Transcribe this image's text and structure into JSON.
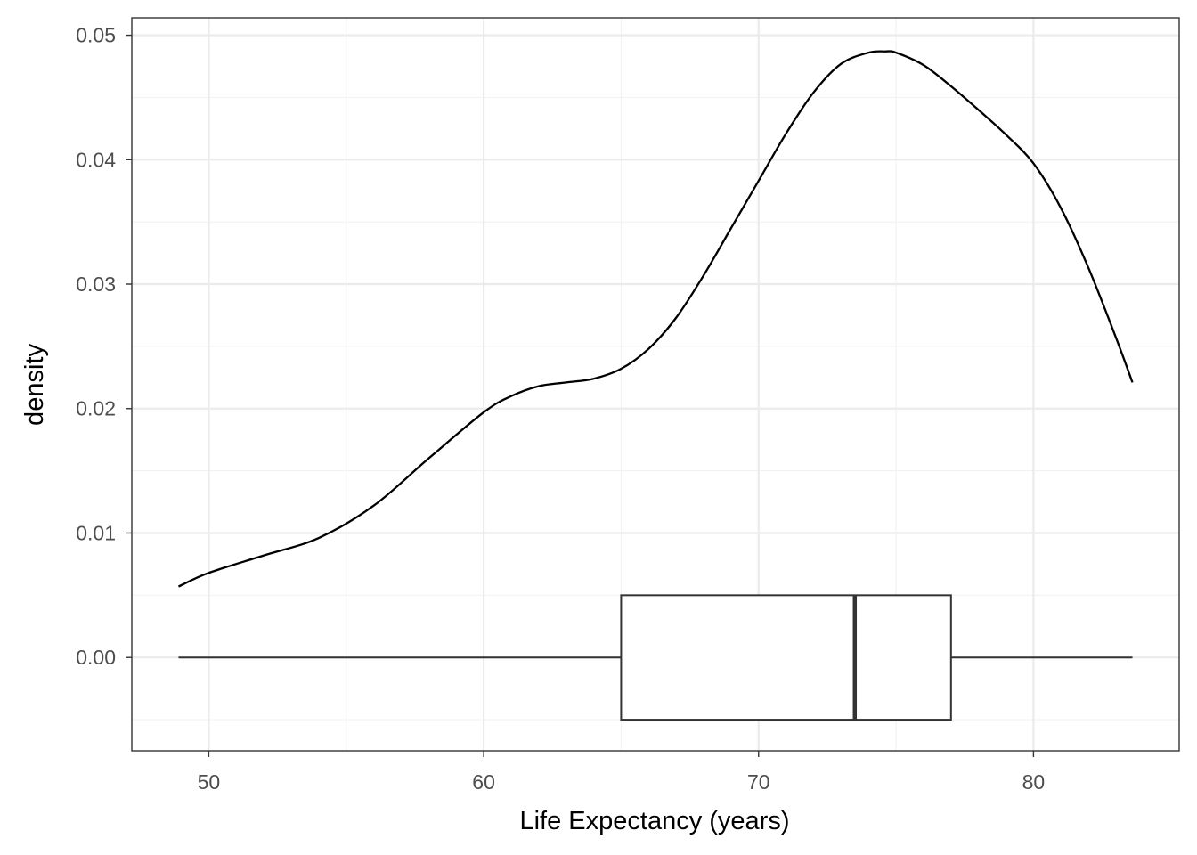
{
  "chart_data": {
    "type": "density",
    "xlabel": "Life Expectancy (years)",
    "ylabel": "density",
    "xlim": [
      47.2,
      85.3
    ],
    "ylim": [
      -0.0075,
      0.0514
    ],
    "x_ticks": [
      50,
      60,
      70,
      80
    ],
    "x_tick_labels": [
      "50",
      "60",
      "70",
      "80"
    ],
    "y_ticks": [
      0.0,
      0.01,
      0.02,
      0.03,
      0.04,
      0.05
    ],
    "y_tick_labels": [
      "0.00",
      "0.01",
      "0.02",
      "0.03",
      "0.04",
      "0.05"
    ],
    "x_minor_ticks": [
      55,
      65,
      75
    ],
    "y_minor_ticks": [
      -0.005,
      0.005,
      0.015,
      0.025,
      0.035,
      0.045
    ],
    "grid": true,
    "density_curve": {
      "x": [
        48.9,
        50.0,
        52.0,
        54.0,
        56.0,
        58.0,
        60.0,
        61.0,
        62.0,
        63.0,
        64.0,
        65.0,
        66.0,
        67.0,
        68.0,
        69.0,
        70.0,
        71.0,
        72.0,
        73.0,
        74.0,
        74.6,
        75.0,
        76.0,
        77.0,
        78.0,
        79.0,
        80.0,
        81.0,
        82.0,
        83.0,
        83.6
      ],
      "y": [
        0.0057,
        0.0068,
        0.0082,
        0.0096,
        0.0122,
        0.016,
        0.0197,
        0.021,
        0.0218,
        0.0221,
        0.0224,
        0.0232,
        0.0248,
        0.0273,
        0.0307,
        0.0345,
        0.0383,
        0.0421,
        0.0454,
        0.0477,
        0.0486,
        0.0487,
        0.0486,
        0.0476,
        0.0459,
        0.044,
        0.042,
        0.0397,
        0.0361,
        0.0313,
        0.0257,
        0.0221
      ]
    },
    "boxplot": {
      "min": 48.9,
      "q1": 65.0,
      "median": 73.5,
      "q3": 77.0,
      "max": 83.6,
      "y_center": 0.0,
      "y_half_height": 0.005
    },
    "colors": {
      "line": "#000000",
      "box": "#333333",
      "grid_major": "#ebebeb",
      "grid_minor": "#f2f2f2",
      "panel_border": "#333333"
    }
  }
}
